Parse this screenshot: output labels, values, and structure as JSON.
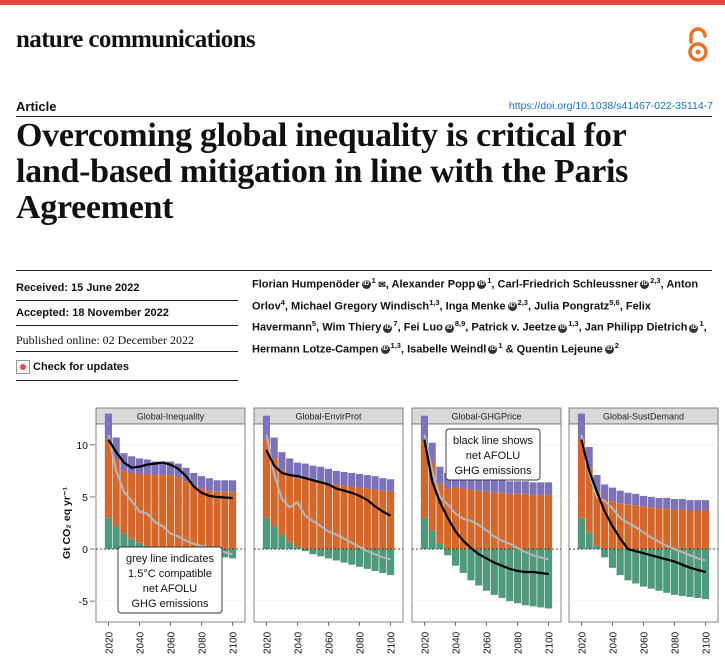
{
  "journal": "nature communications",
  "oa_icon": "open-access-icon",
  "article_type": "Article",
  "doi": "https://doi.org/10.1038/s41467-022-35114-7",
  "title": "Overcoming global inequality is critical for land-based mitigation in line with the Paris Agreement",
  "received": "Received: 15 June 2022",
  "accepted": "Accepted: 18 November 2022",
  "published": "Published online: 02 December 2022",
  "check_updates": "Check for updates",
  "authors": [
    {
      "name": "Florian Humpenöder",
      "orcid": true,
      "aff": "1",
      "email": true
    },
    {
      "name": "Alexander Popp",
      "orcid": true,
      "aff": "1"
    },
    {
      "name": "Carl-Friedrich Schleussner",
      "orcid": true,
      "aff": "2,3"
    },
    {
      "name": "Anton Orlov",
      "orcid": false,
      "aff": "4"
    },
    {
      "name": "Michael Gregory Windisch",
      "orcid": false,
      "aff": "1,3"
    },
    {
      "name": "Inga Menke",
      "orcid": true,
      "aff": "2,3"
    },
    {
      "name": "Julia Pongratz",
      "orcid": false,
      "aff": "5,6"
    },
    {
      "name": "Felix Havermann",
      "orcid": false,
      "aff": "5"
    },
    {
      "name": "Wim Thiery",
      "orcid": true,
      "aff": "7"
    },
    {
      "name": "Fei Luo",
      "orcid": true,
      "aff": "8,9"
    },
    {
      "name": "Patrick v. Jeetze",
      "orcid": true,
      "aff": "1,3"
    },
    {
      "name": "Jan Philipp Dietrich",
      "orcid": true,
      "aff": "1"
    },
    {
      "name": "Hermann Lotze-Campen",
      "orcid": true,
      "aff": "1,3"
    },
    {
      "name": "Isabelle Weindl",
      "orcid": true,
      "aff": "1"
    },
    {
      "name": "Quentin Lejeune",
      "orcid": true,
      "aff": "2"
    }
  ],
  "chart_data": {
    "type": "area",
    "ylabel": "Gt CO₂ eq yr⁻¹",
    "ylim": [
      -7,
      12
    ],
    "yticks": [
      10,
      5,
      0,
      -5
    ],
    "xticks": [
      "2020",
      "2040",
      "2060",
      "2080",
      "2100"
    ],
    "colors": {
      "purple": "#7b72b8",
      "orange": "#d4682c",
      "green": "#4f9a7c",
      "black_line": "#000000",
      "grey_line": "#b4b4b4"
    },
    "annotations": {
      "grey": [
        "grey line indicates",
        "1.5°C compatible",
        "net AFOLU",
        "GHG emissions"
      ],
      "black": [
        "black line shows",
        "net AFOLU",
        "GHG emissions"
      ]
    },
    "panels": [
      {
        "name": "Global-Inequality",
        "x": [
          2020,
          2025,
          2030,
          2035,
          2040,
          2045,
          2050,
          2055,
          2060,
          2065,
          2070,
          2075,
          2080,
          2085,
          2090,
          2095,
          2100
        ],
        "green": [
          3.0,
          2.2,
          1.5,
          1.0,
          0.6,
          0.3,
          0.1,
          0.0,
          -0.1,
          -0.2,
          -0.3,
          -0.4,
          -0.5,
          -0.6,
          -0.7,
          -0.8,
          -0.9
        ],
        "orange": [
          7.5,
          6.4,
          6.0,
          6.3,
          6.6,
          6.9,
          7.0,
          7.1,
          7.1,
          6.9,
          6.5,
          6.1,
          5.8,
          5.6,
          5.5,
          5.5,
          5.5
        ],
        "purple": [
          2.5,
          2.1,
          1.7,
          1.6,
          1.5,
          1.4,
          1.3,
          1.3,
          1.3,
          1.3,
          1.3,
          1.2,
          1.2,
          1.2,
          1.1,
          1.1,
          1.1
        ],
        "black": [
          10.5,
          9.3,
          8.3,
          7.8,
          7.9,
          8.1,
          8.2,
          8.3,
          8.1,
          7.7,
          7.0,
          6.0,
          5.4,
          5.1,
          5.0,
          4.95,
          4.9
        ],
        "grey": [
          11,
          7.5,
          5.5,
          4.6,
          3.6,
          3.4,
          2.6,
          2.2,
          1.5,
          1.2,
          0.8,
          0.5,
          0.3,
          0.1,
          -0.1,
          -0.3,
          -0.5
        ]
      },
      {
        "name": "Global-EnvirProt",
        "x": [
          2020,
          2025,
          2030,
          2035,
          2040,
          2045,
          2050,
          2055,
          2060,
          2065,
          2070,
          2075,
          2080,
          2085,
          2090,
          2095,
          2100
        ],
        "green": [
          3.0,
          2.2,
          1.4,
          0.7,
          0.2,
          -0.2,
          -0.5,
          -0.7,
          -0.9,
          -1.1,
          -1.3,
          -1.5,
          -1.7,
          -1.9,
          -2.1,
          -2.3,
          -2.5
        ],
        "orange": [
          7.5,
          6.5,
          6.2,
          6.4,
          6.6,
          6.7,
          6.6,
          6.5,
          6.3,
          6.2,
          6.1,
          6.0,
          5.9,
          5.8,
          5.7,
          5.6,
          5.5
        ],
        "purple": [
          2.3,
          2.0,
          1.7,
          1.6,
          1.5,
          1.5,
          1.4,
          1.4,
          1.4,
          1.3,
          1.3,
          1.3,
          1.3,
          1.3,
          1.3,
          1.2,
          1.2
        ],
        "black": [
          9.5,
          8.0,
          7.3,
          7.1,
          7.0,
          6.8,
          6.6,
          6.4,
          6.2,
          5.8,
          5.6,
          5.4,
          5.1,
          4.7,
          4.1,
          3.6,
          3.2
        ],
        "grey": [
          11,
          7.2,
          4.8,
          4.0,
          4.5,
          3.2,
          2.7,
          2.2,
          1.7,
          1.4,
          1.0,
          0.6,
          0.2,
          -0.2,
          -0.5,
          -0.8,
          -1.0
        ]
      },
      {
        "name": "Global-GHGPrice",
        "x": [
          2020,
          2025,
          2030,
          2035,
          2040,
          2045,
          2050,
          2055,
          2060,
          2065,
          2070,
          2075,
          2080,
          2085,
          2090,
          2095,
          2100
        ],
        "green": [
          3.0,
          1.8,
          0.5,
          -0.6,
          -1.6,
          -2.3,
          -3.0,
          -3.5,
          -4.0,
          -4.4,
          -4.7,
          -5.0,
          -5.2,
          -5.4,
          -5.5,
          -5.6,
          -5.7
        ],
        "orange": [
          7.5,
          6.5,
          5.8,
          5.8,
          5.9,
          5.8,
          5.7,
          5.6,
          5.5,
          5.4,
          5.4,
          5.3,
          5.3,
          5.3,
          5.2,
          5.2,
          5.2
        ],
        "purple": [
          2.3,
          1.9,
          1.6,
          1.5,
          1.4,
          1.4,
          1.3,
          1.3,
          1.3,
          1.3,
          1.2,
          1.2,
          1.2,
          1.2,
          1.2,
          1.2,
          1.2
        ],
        "black": [
          10.5,
          6.5,
          4.5,
          3.0,
          1.7,
          0.8,
          0.1,
          -0.5,
          -0.9,
          -1.3,
          -1.6,
          -1.9,
          -2.1,
          -2.2,
          -2.2,
          -2.3,
          -2.4
        ],
        "grey": [
          11,
          7.5,
          5.0,
          4.3,
          3.4,
          2.9,
          2.7,
          2.3,
          1.8,
          1.2,
          0.8,
          0.5,
          0.1,
          -0.3,
          -0.6,
          -0.8,
          -1.0
        ]
      },
      {
        "name": "Global-SustDemand",
        "x": [
          2020,
          2025,
          2030,
          2035,
          2040,
          2045,
          2050,
          2055,
          2060,
          2065,
          2070,
          2075,
          2080,
          2085,
          2090,
          2095,
          2100
        ],
        "green": [
          3.0,
          1.6,
          0.3,
          -0.8,
          -1.8,
          -2.5,
          -3.0,
          -3.3,
          -3.6,
          -3.8,
          -4.0,
          -4.2,
          -4.4,
          -4.5,
          -4.6,
          -4.7,
          -4.8
        ],
        "orange": [
          7.5,
          6.2,
          5.2,
          4.8,
          4.6,
          4.4,
          4.3,
          4.2,
          4.1,
          4.0,
          3.9,
          3.9,
          3.8,
          3.8,
          3.7,
          3.7,
          3.7
        ],
        "purple": [
          2.5,
          2.0,
          1.6,
          1.4,
          1.3,
          1.2,
          1.1,
          1.1,
          1.0,
          1.0,
          1.0,
          1.0,
          1.0,
          1.0,
          1.0,
          1.0,
          1.0
        ],
        "black": [
          10.5,
          7.5,
          5.5,
          3.6,
          2.2,
          1.0,
          0.0,
          -0.2,
          -0.4,
          -0.6,
          -0.8,
          -1.0,
          -1.2,
          -1.5,
          -1.8,
          -2.0,
          -2.2
        ],
        "grey": [
          11,
          7.2,
          5.0,
          4.6,
          3.9,
          3.0,
          2.5,
          2.1,
          1.6,
          1.1,
          0.7,
          0.3,
          0.0,
          -0.3,
          -0.6,
          -0.9,
          -1.1
        ]
      }
    ]
  }
}
